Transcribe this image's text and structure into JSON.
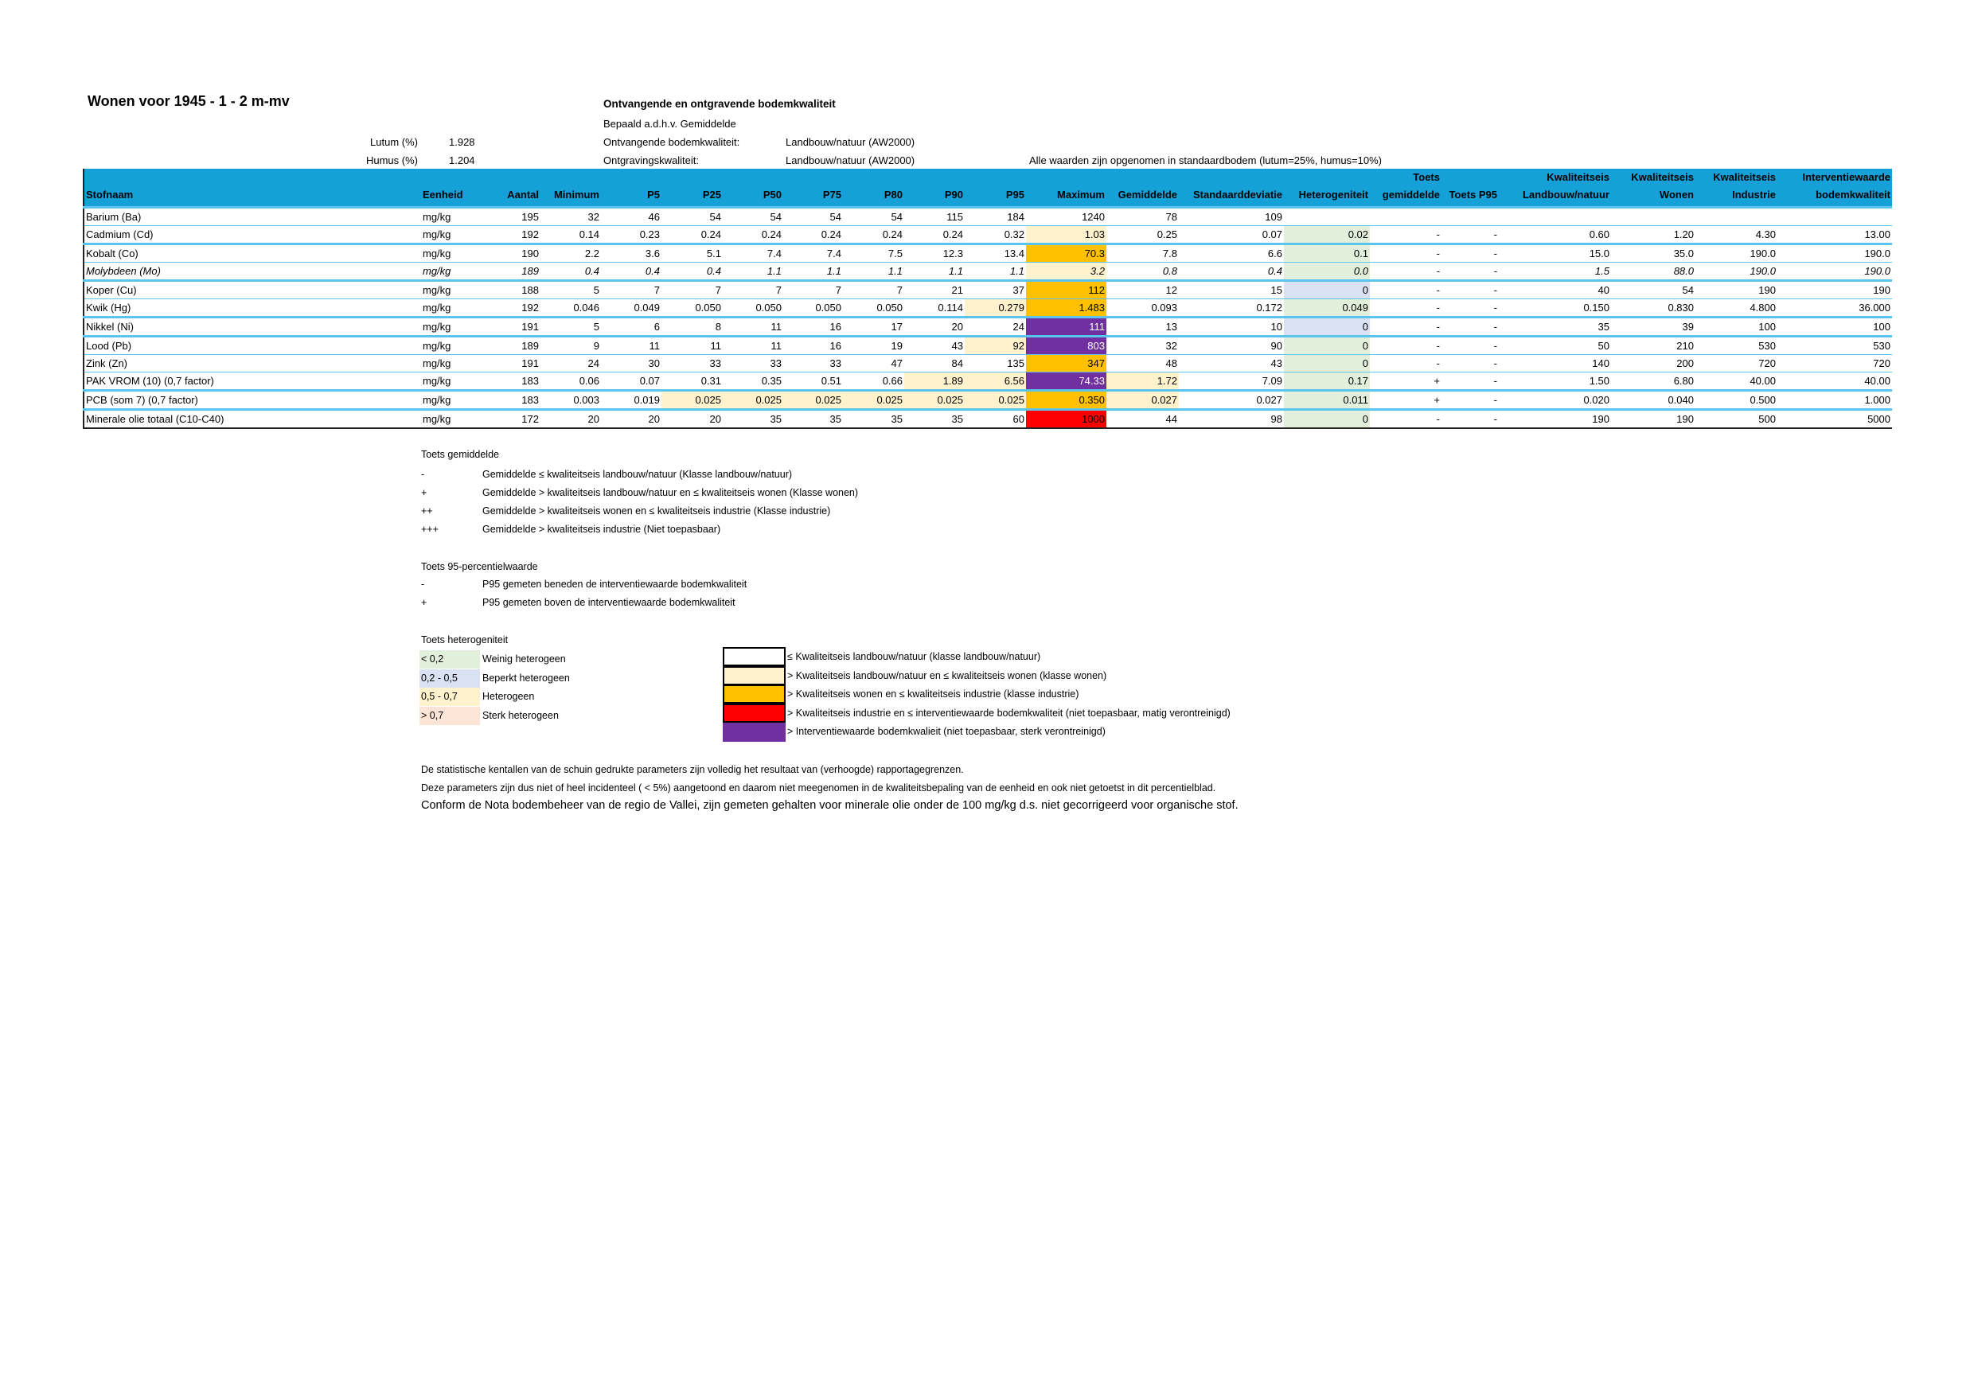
{
  "header": {
    "title": "Wonen voor 1945 - 1 - 2 m-mv",
    "subtitle": "Ontvangende en ontgravende bodemkwaliteit",
    "bepaald": "Bepaald a.d.h.v. Gemiddelde",
    "lutum_label": "Lutum (%)",
    "lutum_value": "1.928",
    "humus_label": "Humus (%)",
    "humus_value": "1.204",
    "ontvangende_label": "Ontvangende bodemkwaliteit:",
    "ontvangende_value": "Landbouw/natuur (AW2000)",
    "ontgraving_label": "Ontgravingskwaliteit:",
    "ontgraving_value": "Landbouw/natuur (AW2000)",
    "standaardbodem_note": "Alle waarden zijn opgenomen in standaardbodem (lutum=25%, humus=10%)"
  },
  "table": {
    "columns": [
      "Stofnaam",
      "Eenheid",
      "Aantal",
      "Minimum",
      "P5",
      "P25",
      "P50",
      "P75",
      "P80",
      "P90",
      "P95",
      "Maximum",
      "Gemiddelde",
      "Standaarddeviatie",
      "Heterogeniteit",
      [
        "Toets",
        "gemiddelde"
      ],
      "Toets P95",
      [
        "Kwaliteitseis",
        "Landbouw/natuur"
      ],
      [
        "Kwaliteitseis",
        "Wonen"
      ],
      [
        "Kwaliteitseis",
        "Industrie"
      ],
      [
        "Interventiewaarde",
        "bodemkwaliteit"
      ]
    ],
    "rows": [
      {
        "cells": [
          "Barium (Ba)",
          "mg/kg",
          "195",
          "32",
          "46",
          "54",
          "54",
          "54",
          "54",
          "115",
          "184",
          "1240",
          "78",
          "109",
          "",
          "",
          "",
          "",
          "",
          "",
          ""
        ],
        "fills": {}
      },
      {
        "cells": [
          "Cadmium (Cd)",
          "mg/kg",
          "192",
          "0.14",
          "0.23",
          "0.24",
          "0.24",
          "0.24",
          "0.24",
          "0.24",
          "0.32",
          "1.03",
          "0.25",
          "0.07",
          "0.02",
          "-",
          "-",
          "0.60",
          "1.20",
          "4.30",
          "13.00"
        ],
        "fills": {
          "11": "ly",
          "14": "gr"
        }
      },
      {
        "cells": [
          "Kobalt (Co)",
          "mg/kg",
          "190",
          "2.2",
          "3.6",
          "5.1",
          "7.4",
          "7.4",
          "7.5",
          "12.3",
          "13.4",
          "70.3",
          "7.8",
          "6.6",
          "0.1",
          "-",
          "-",
          "15.0",
          "35.0",
          "190.0",
          "190.0"
        ],
        "fills": {
          "11": "or",
          "14": "gr"
        }
      },
      {
        "italic": true,
        "cells": [
          "Molybdeen (Mo)",
          "mg/kg",
          "189",
          "0.4",
          "0.4",
          "0.4",
          "1.1",
          "1.1",
          "1.1",
          "1.1",
          "1.1",
          "3.2",
          "0.8",
          "0.4",
          "0.0",
          "-",
          "-",
          "1.5",
          "88.0",
          "190.0",
          "190.0"
        ],
        "fills": {
          "11": "ly",
          "14": "gr"
        }
      },
      {
        "cells": [
          "Koper (Cu)",
          "mg/kg",
          "188",
          "5",
          "7",
          "7",
          "7",
          "7",
          "7",
          "21",
          "37",
          "112",
          "12",
          "15",
          "0",
          "-",
          "-",
          "40",
          "54",
          "190",
          "190"
        ],
        "fills": {
          "11": "or",
          "14": "bl"
        }
      },
      {
        "cells": [
          "Kwik (Hg)",
          "mg/kg",
          "192",
          "0.046",
          "0.049",
          "0.050",
          "0.050",
          "0.050",
          "0.050",
          "0.114",
          "0.279",
          "1.483",
          "0.093",
          "0.172",
          "0.049",
          "-",
          "-",
          "0.150",
          "0.830",
          "4.800",
          "36.000"
        ],
        "fills": {
          "10": "ly",
          "11": "or",
          "14": "gr"
        }
      },
      {
        "cells": [
          "Nikkel (Ni)",
          "mg/kg",
          "191",
          "5",
          "6",
          "8",
          "11",
          "16",
          "17",
          "20",
          "24",
          "111",
          "13",
          "10",
          "0",
          "-",
          "-",
          "35",
          "39",
          "100",
          "100"
        ],
        "fills": {
          "11": "pu",
          "14": "bl"
        }
      },
      {
        "cells": [
          "Lood (Pb)",
          "mg/kg",
          "189",
          "9",
          "11",
          "11",
          "11",
          "16",
          "19",
          "43",
          "92",
          "803",
          "32",
          "90",
          "0",
          "-",
          "-",
          "50",
          "210",
          "530",
          "530"
        ],
        "fills": {
          "10": "ly",
          "11": "pu",
          "14": "gr"
        }
      },
      {
        "cells": [
          "Zink (Zn)",
          "mg/kg",
          "191",
          "24",
          "30",
          "33",
          "33",
          "33",
          "47",
          "84",
          "135",
          "347",
          "48",
          "43",
          "0",
          "-",
          "-",
          "140",
          "200",
          "720",
          "720"
        ],
        "fills": {
          "11": "or",
          "14": "gr"
        }
      },
      {
        "cells": [
          "PAK VROM (10) (0,7 factor)",
          "mg/kg",
          "183",
          "0.06",
          "0.07",
          "0.31",
          "0.35",
          "0.51",
          "0.66",
          "1.89",
          "6.56",
          "74.33",
          "1.72",
          "7.09",
          "0.17",
          "+",
          "-",
          "1.50",
          "6.80",
          "40.00",
          "40.00"
        ],
        "fills": {
          "9": "ly",
          "10": "ly",
          "11": "pu",
          "12": "ly",
          "14": "gr"
        }
      },
      {
        "cells": [
          "PCB (som 7) (0,7 factor)",
          "mg/kg",
          "183",
          "0.003",
          "0.019",
          "0.025",
          "0.025",
          "0.025",
          "0.025",
          "0.025",
          "0.025",
          "0.350",
          "0.027",
          "0.027",
          "0.011",
          "+",
          "-",
          "0.020",
          "0.040",
          "0.500",
          "1.000"
        ],
        "fills": {
          "5": "ly",
          "6": "ly",
          "7": "ly",
          "8": "ly",
          "9": "ly",
          "10": "ly",
          "11": "or",
          "12": "ly",
          "14": "gr"
        }
      },
      {
        "cells": [
          "Minerale olie totaal (C10-C40)",
          "mg/kg",
          "172",
          "20",
          "20",
          "20",
          "35",
          "35",
          "35",
          "35",
          "60",
          "1000",
          "44",
          "98",
          "0",
          "-",
          "-",
          "190",
          "190",
          "500",
          "5000"
        ],
        "fills": {
          "11": "rd",
          "14": "gr"
        }
      }
    ]
  },
  "legend": {
    "toets_gemiddelde": {
      "title": "Toets gemiddelde",
      "items": [
        {
          "symbol": "-",
          "text": "Gemiddelde ≤ kwaliteitseis landbouw/natuur (Klasse landbouw/natuur)"
        },
        {
          "symbol": "+",
          "text": "Gemiddelde > kwaliteitseis landbouw/natuur en ≤ kwaliteitseis wonen (Klasse wonen)"
        },
        {
          "symbol": "++",
          "text": "Gemiddelde > kwaliteitseis wonen en ≤ kwaliteitseis industrie (Klasse industrie)"
        },
        {
          "symbol": "+++",
          "text": "Gemiddelde > kwaliteitseis industrie (Niet toepasbaar)"
        }
      ]
    },
    "toets_p95": {
      "title": "Toets 95-percentielwaarde",
      "items": [
        {
          "symbol": "-",
          "text": "P95 gemeten beneden de interventiewaarde bodemkwaliteit"
        },
        {
          "symbol": "+",
          "text": "P95 gemeten boven de interventiewaarde bodemkwaliteit"
        }
      ]
    },
    "toets_heterogeniteit": {
      "title": "Toets heterogeniteit",
      "items": [
        {
          "range": "< 0,2",
          "text": "Weinig heterogeen",
          "color": "#e2efda"
        },
        {
          "range": "0,2 - 0,5",
          "text": "Beperkt heterogeen",
          "color": "#d9e1f2"
        },
        {
          "range": "0,5 - 0,7",
          "text": "Heterogeen",
          "color": "#fff2cc"
        },
        {
          "range": "> 0,7",
          "text": "Sterk heterogeen",
          "color": "#fce4d6"
        }
      ]
    },
    "kwaliteit_kleuren": [
      {
        "color": "#ffffff",
        "text": "≤ Kwaliteitseis landbouw/natuur (klasse landbouw/natuur)"
      },
      {
        "color": "#fff2cc",
        "text": "> Kwaliteitseis landbouw/natuur en ≤ kwaliteitseis wonen (klasse wonen)"
      },
      {
        "color": "#ffc000",
        "text": "> Kwaliteitseis wonen en ≤ kwaliteitseis industrie (klasse industrie)"
      },
      {
        "color": "#ff0000",
        "text": "> Kwaliteitseis industrie en ≤ interventiewaarde bodemkwaliteit (niet toepasbaar, matig verontreinigd)"
      },
      {
        "color": "#7030a0",
        "text": "> Interventiewaarde bodemkwalieit (niet toepasbaar, sterk verontreinigd)"
      }
    ]
  },
  "notes": [
    "De statistische kentallen van de schuin gedrukte parameters zijn volledig het resultaat van (verhoogde) rapportagegrenzen.",
    "Deze parameters zijn dus niet of heel incidenteel ( < 5%) aangetoond en daarom niet meegenomen in de kwaliteitsbepaling van de eenheid en ook niet getoetst in dit percentielblad.",
    "Conform de Nota bodembeheer van de regio de Vallei, zijn gemeten gehalten voor minerale olie onder de 100 mg/kg d.s. niet gecorrigeerd voor organische stof."
  ]
}
